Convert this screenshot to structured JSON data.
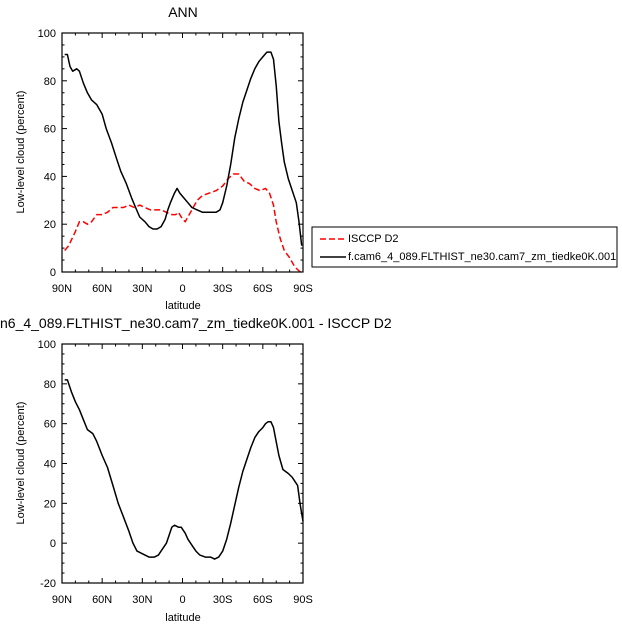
{
  "chart_data": [
    {
      "type": "line",
      "title": "ANN",
      "xlabel": "latitude",
      "ylabel": "Low-level cloud (percent)",
      "xlim": [
        90,
        -90
      ],
      "ylim": [
        0,
        100
      ],
      "xticks": [
        {
          "value": 90,
          "label": "90N"
        },
        {
          "value": 60,
          "label": "60N"
        },
        {
          "value": 30,
          "label": "30N"
        },
        {
          "value": 0,
          "label": "0"
        },
        {
          "value": -30,
          "label": "30S"
        },
        {
          "value": -60,
          "label": "60S"
        },
        {
          "value": -90,
          "label": "90S"
        }
      ],
      "yticks": [
        0,
        20,
        40,
        60,
        80,
        100
      ],
      "legend": "right",
      "series": [
        {
          "name": "ISCCP D2",
          "color": "#ff0000",
          "dash": true,
          "points": [
            [
              88,
              9
            ],
            [
              85,
              11
            ],
            [
              80,
              17
            ],
            [
              77,
              21
            ],
            [
              74,
              21
            ],
            [
              71,
              20
            ],
            [
              68,
              21
            ],
            [
              64,
              24
            ],
            [
              60,
              24
            ],
            [
              56,
              25
            ],
            [
              52,
              27
            ],
            [
              48,
              27
            ],
            [
              44,
              27
            ],
            [
              40,
              28
            ],
            [
              36,
              27
            ],
            [
              32,
              28
            ],
            [
              28,
              27
            ],
            [
              24,
              26
            ],
            [
              20,
              26
            ],
            [
              16,
              26
            ],
            [
              12,
              25
            ],
            [
              8,
              24
            ],
            [
              5,
              24
            ],
            [
              3,
              25
            ],
            [
              1,
              23
            ],
            [
              -2,
              21
            ],
            [
              -5,
              24
            ],
            [
              -8,
              27
            ],
            [
              -11,
              30
            ],
            [
              -15,
              32
            ],
            [
              -20,
              33
            ],
            [
              -25,
              34
            ],
            [
              -30,
              36
            ],
            [
              -34,
              39
            ],
            [
              -38,
              41
            ],
            [
              -42,
              41
            ],
            [
              -46,
              38
            ],
            [
              -50,
              37
            ],
            [
              -54,
              35
            ],
            [
              -58,
              34
            ],
            [
              -62,
              35
            ],
            [
              -65,
              33
            ],
            [
              -68,
              28
            ],
            [
              -70,
              21
            ],
            [
              -73,
              14
            ],
            [
              -76,
              9
            ],
            [
              -80,
              6
            ],
            [
              -84,
              2
            ],
            [
              -88,
              0
            ],
            [
              -90,
              0
            ]
          ]
        },
        {
          "name": "f.cam6_4_089.FLTHIST_ne30.cam7_zm_tiedke0K.001",
          "color": "#000000",
          "dash": false,
          "points": [
            [
              88,
              91
            ],
            [
              86,
              91
            ],
            [
              84,
              86
            ],
            [
              82,
              84
            ],
            [
              79,
              85
            ],
            [
              77,
              84
            ],
            [
              74,
              79
            ],
            [
              71,
              75
            ],
            [
              68,
              72
            ],
            [
              64,
              70
            ],
            [
              60,
              66
            ],
            [
              57,
              60
            ],
            [
              53,
              54
            ],
            [
              49,
              47
            ],
            [
              46,
              42
            ],
            [
              42,
              37
            ],
            [
              38,
              31
            ],
            [
              35,
              27
            ],
            [
              32,
              23
            ],
            [
              28,
              21
            ],
            [
              25,
              19
            ],
            [
              22,
              18
            ],
            [
              19,
              18
            ],
            [
              16,
              19
            ],
            [
              13,
              22
            ],
            [
              11,
              26
            ],
            [
              9,
              29
            ],
            [
              6,
              33
            ],
            [
              4,
              35
            ],
            [
              2,
              33
            ],
            [
              -1,
              31
            ],
            [
              -4,
              29
            ],
            [
              -7,
              27
            ],
            [
              -11,
              26
            ],
            [
              -15,
              25
            ],
            [
              -20,
              25
            ],
            [
              -25,
              25
            ],
            [
              -28,
              26
            ],
            [
              -30,
              29
            ],
            [
              -33,
              36
            ],
            [
              -36,
              45
            ],
            [
              -39,
              56
            ],
            [
              -42,
              64
            ],
            [
              -45,
              71
            ],
            [
              -48,
              76
            ],
            [
              -51,
              81
            ],
            [
              -54,
              85
            ],
            [
              -57,
              88
            ],
            [
              -60,
              90
            ],
            [
              -63,
              92
            ],
            [
              -66,
              92
            ],
            [
              -68,
              89
            ],
            [
              -70,
              78
            ],
            [
              -72,
              63
            ],
            [
              -74,
              54
            ],
            [
              -76,
              46
            ],
            [
              -79,
              39
            ],
            [
              -82,
              34
            ],
            [
              -85,
              29
            ],
            [
              -87,
              21
            ],
            [
              -89,
              11
            ]
          ]
        }
      ]
    },
    {
      "type": "line",
      "title": "n6_4_089.FLTHIST_ne30.cam7_zm_tiedke0K.001 - ISCCP D2",
      "xlabel": "latitude",
      "ylabel": "Low-level cloud (percent)",
      "xlim": [
        90,
        -90
      ],
      "ylim": [
        -20,
        100
      ],
      "xticks": [
        {
          "value": 90,
          "label": "90N"
        },
        {
          "value": 60,
          "label": "60N"
        },
        {
          "value": 30,
          "label": "30N"
        },
        {
          "value": 0,
          "label": "0"
        },
        {
          "value": -30,
          "label": "30S"
        },
        {
          "value": -60,
          "label": "60S"
        },
        {
          "value": -90,
          "label": "90S"
        }
      ],
      "yticks": [
        -20,
        0,
        20,
        40,
        60,
        80,
        100
      ],
      "series": [
        {
          "color": "#000000",
          "dash": false,
          "points": [
            [
              88,
              82
            ],
            [
              86,
              82
            ],
            [
              83,
              76
            ],
            [
              80,
              71
            ],
            [
              77,
              67
            ],
            [
              74,
              62
            ],
            [
              71,
              57
            ],
            [
              67,
              55
            ],
            [
              64,
              51
            ],
            [
              60,
              44
            ],
            [
              56,
              38
            ],
            [
              52,
              29
            ],
            [
              48,
              20
            ],
            [
              44,
              13
            ],
            [
              40,
              6
            ],
            [
              37,
              0
            ],
            [
              34,
              -4
            ],
            [
              31,
              -5
            ],
            [
              28,
              -6
            ],
            [
              25,
              -7
            ],
            [
              21,
              -7
            ],
            [
              18,
              -6
            ],
            [
              15,
              -3
            ],
            [
              12,
              0
            ],
            [
              10,
              4
            ],
            [
              8,
              8
            ],
            [
              6,
              9
            ],
            [
              3,
              8
            ],
            [
              1,
              8
            ],
            [
              -2,
              5
            ],
            [
              -4,
              2
            ],
            [
              -7,
              -1
            ],
            [
              -10,
              -4
            ],
            [
              -13,
              -6
            ],
            [
              -17,
              -7
            ],
            [
              -21,
              -7
            ],
            [
              -24,
              -8
            ],
            [
              -27,
              -7
            ],
            [
              -30,
              -4
            ],
            [
              -33,
              2
            ],
            [
              -36,
              10
            ],
            [
              -39,
              19
            ],
            [
              -42,
              28
            ],
            [
              -45,
              36
            ],
            [
              -48,
              42
            ],
            [
              -51,
              48
            ],
            [
              -54,
              53
            ],
            [
              -57,
              56
            ],
            [
              -60,
              58
            ],
            [
              -62,
              60
            ],
            [
              -64,
              61
            ],
            [
              -66,
              61
            ],
            [
              -68,
              58
            ],
            [
              -70,
              51
            ],
            [
              -72,
              44
            ],
            [
              -75,
              37
            ],
            [
              -79,
              35
            ],
            [
              -82,
              33
            ],
            [
              -86,
              29
            ],
            [
              -88,
              19
            ],
            [
              -90,
              11
            ]
          ]
        }
      ]
    }
  ]
}
